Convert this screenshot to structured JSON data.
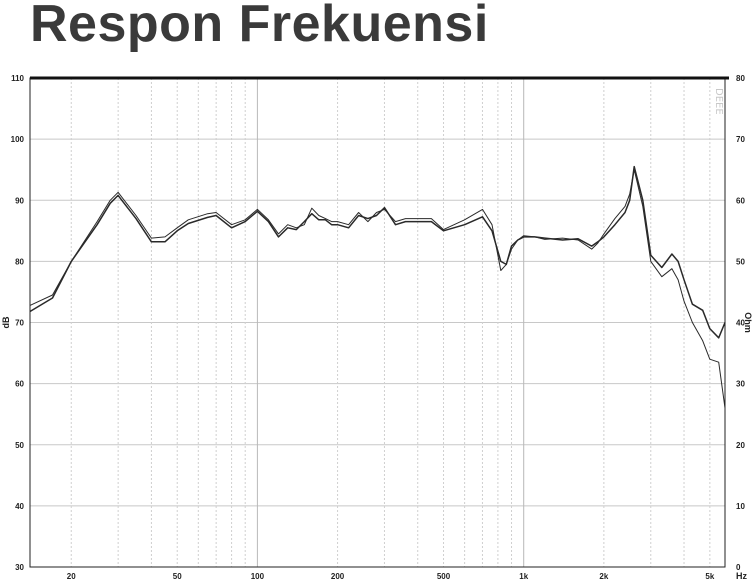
{
  "slide": {
    "title": "Respon Frekuensi"
  },
  "chart_data": {
    "type": "line",
    "title": "Respon Frekuensi",
    "xlabel": "Hz",
    "ylabel": "dB",
    "y2label": "Ohm",
    "x_scale": "log",
    "xlim": [
      14,
      5700
    ],
    "ylim": [
      30,
      110
    ],
    "y2lim": [
      0,
      80
    ],
    "grid": true,
    "x_ticks": [
      {
        "value": 20,
        "label": "20"
      },
      {
        "value": 50,
        "label": "50"
      },
      {
        "value": 100,
        "label": "100"
      },
      {
        "value": 200,
        "label": "200"
      },
      {
        "value": 500,
        "label": "500"
      },
      {
        "value": 1000,
        "label": "1k"
      },
      {
        "value": 2000,
        "label": "2k"
      },
      {
        "value": 5000,
        "label": "5k"
      }
    ],
    "y_ticks": [
      30,
      40,
      50,
      60,
      70,
      80,
      90,
      100,
      110
    ],
    "y2_ticks": [
      0,
      10,
      20,
      30,
      40,
      50,
      60,
      70,
      80
    ],
    "watermark": "DEEE",
    "series": [
      {
        "color": "#2a2a2a",
        "x": [
          14,
          17,
          20,
          25,
          28,
          30,
          35,
          40,
          45,
          50,
          55,
          65,
          70,
          80,
          90,
          100,
          110,
          120,
          130,
          140,
          150,
          160,
          170,
          180,
          190,
          200,
          220,
          240,
          260,
          280,
          300,
          330,
          360,
          400,
          450,
          500,
          600,
          700,
          760,
          820,
          860,
          900,
          950,
          1000,
          1100,
          1200,
          1400,
          1600,
          1800,
          1900,
          2000,
          2200,
          2400,
          2500,
          2600,
          2800,
          3000,
          3300,
          3600,
          3800,
          4000,
          4300,
          4700,
          5000,
          5400,
          5700
        ],
        "y": [
          71.8,
          74,
          80,
          86,
          89.5,
          90.8,
          87,
          83.2,
          83.2,
          85,
          86.2,
          87.2,
          87.5,
          85.5,
          86.5,
          88.2,
          86.5,
          84,
          85.5,
          85.2,
          86.5,
          87.8,
          86.8,
          86.8,
          86,
          86,
          85.5,
          87.5,
          87,
          87.5,
          88.8,
          86,
          86.5,
          86.5,
          86.5,
          85,
          86,
          87.3,
          85,
          80,
          79.5,
          82.5,
          83.5,
          84,
          84,
          83.8,
          83.5,
          83.7,
          82.5,
          83.2,
          84,
          86,
          88,
          90,
          95.5,
          90,
          81,
          79,
          81.2,
          80,
          77,
          73,
          72,
          69,
          67.5,
          70
        ]
      },
      {
        "color": "#2a2a2a",
        "x": [
          14,
          17,
          20,
          25,
          28,
          30,
          35,
          40,
          45,
          50,
          55,
          65,
          70,
          80,
          90,
          100,
          110,
          120,
          130,
          140,
          150,
          160,
          170,
          180,
          190,
          200,
          220,
          240,
          260,
          280,
          300,
          330,
          360,
          400,
          450,
          500,
          600,
          700,
          760,
          820,
          860,
          900,
          950,
          1000,
          1100,
          1200,
          1400,
          1600,
          1800,
          1900,
          2000,
          2200,
          2400,
          2500,
          2600,
          2800,
          3000,
          3300,
          3600,
          3800,
          4000,
          4300,
          4700,
          5000,
          5400,
          5700
        ],
        "y": [
          72.8,
          74.5,
          80,
          86.5,
          90,
          91.3,
          87.5,
          83.8,
          84,
          85.5,
          86.8,
          87.8,
          88,
          86,
          86.8,
          88.5,
          86.8,
          84.5,
          86,
          85.5,
          86,
          88.7,
          87.5,
          87,
          86.5,
          86.5,
          86,
          88,
          86.5,
          88,
          88.5,
          86.5,
          87,
          87,
          87,
          85.2,
          86.8,
          88.5,
          86,
          78.5,
          79.5,
          82,
          83.5,
          84.2,
          84,
          83.6,
          83.8,
          83.5,
          82,
          83,
          84.5,
          87,
          89,
          91,
          95,
          89,
          80,
          77.5,
          78.8,
          77,
          73.5,
          70,
          67,
          64,
          63.5,
          56
        ]
      }
    ]
  }
}
